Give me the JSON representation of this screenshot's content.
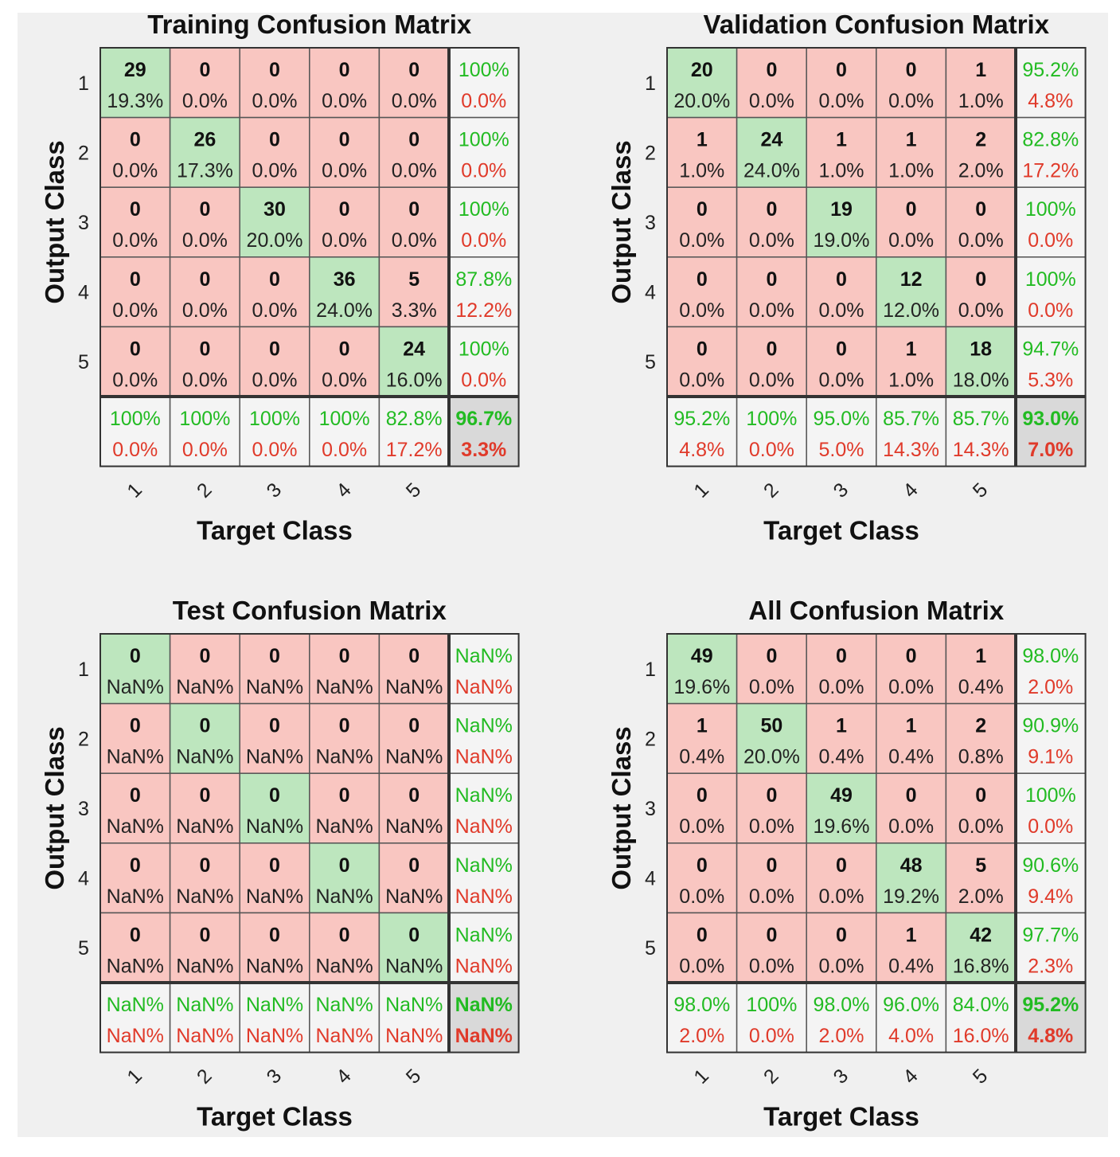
{
  "colors": {
    "correct_cell": "#bde6be",
    "wrong_cell": "#f9c6c1",
    "summary_cell": "#f4f4f4",
    "total_cell": "#d9d9d9",
    "green_text": "#22bb22",
    "red_text": "#e03a2a",
    "grid": "#555555"
  },
  "chart_data": [
    {
      "type": "heatmap",
      "title": "Training Confusion Matrix",
      "xlabel": "Target Class",
      "ylabel": "Output Class",
      "row_labels": [
        "1",
        "2",
        "3",
        "4",
        "5"
      ],
      "col_labels": [
        "1",
        "2",
        "3",
        "4",
        "5"
      ],
      "counts": [
        [
          29,
          0,
          0,
          0,
          0
        ],
        [
          0,
          26,
          0,
          0,
          0
        ],
        [
          0,
          0,
          30,
          0,
          0
        ],
        [
          0,
          0,
          0,
          36,
          5
        ],
        [
          0,
          0,
          0,
          0,
          24
        ]
      ],
      "percents": [
        [
          "19.3%",
          "0.0%",
          "0.0%",
          "0.0%",
          "0.0%"
        ],
        [
          "0.0%",
          "17.3%",
          "0.0%",
          "0.0%",
          "0.0%"
        ],
        [
          "0.0%",
          "0.0%",
          "20.0%",
          "0.0%",
          "0.0%"
        ],
        [
          "0.0%",
          "0.0%",
          "0.0%",
          "24.0%",
          "3.3%"
        ],
        [
          "0.0%",
          "0.0%",
          "0.0%",
          "0.0%",
          "16.0%"
        ]
      ],
      "row_summary": [
        [
          "100%",
          "0.0%"
        ],
        [
          "100%",
          "0.0%"
        ],
        [
          "100%",
          "0.0%"
        ],
        [
          "87.8%",
          "12.2%"
        ],
        [
          "100%",
          "0.0%"
        ]
      ],
      "col_summary": [
        [
          "100%",
          "0.0%"
        ],
        [
          "100%",
          "0.0%"
        ],
        [
          "100%",
          "0.0%"
        ],
        [
          "100%",
          "0.0%"
        ],
        [
          "82.8%",
          "17.2%"
        ]
      ],
      "total": [
        "96.7%",
        "3.3%"
      ]
    },
    {
      "type": "heatmap",
      "title": "Validation Confusion Matrix",
      "xlabel": "Target Class",
      "ylabel": "Output Class",
      "row_labels": [
        "1",
        "2",
        "3",
        "4",
        "5"
      ],
      "col_labels": [
        "1",
        "2",
        "3",
        "4",
        "5"
      ],
      "counts": [
        [
          20,
          0,
          0,
          0,
          1
        ],
        [
          1,
          24,
          1,
          1,
          2
        ],
        [
          0,
          0,
          19,
          0,
          0
        ],
        [
          0,
          0,
          0,
          12,
          0
        ],
        [
          0,
          0,
          0,
          1,
          18
        ]
      ],
      "percents": [
        [
          "20.0%",
          "0.0%",
          "0.0%",
          "0.0%",
          "1.0%"
        ],
        [
          "1.0%",
          "24.0%",
          "1.0%",
          "1.0%",
          "2.0%"
        ],
        [
          "0.0%",
          "0.0%",
          "19.0%",
          "0.0%",
          "0.0%"
        ],
        [
          "0.0%",
          "0.0%",
          "0.0%",
          "12.0%",
          "0.0%"
        ],
        [
          "0.0%",
          "0.0%",
          "0.0%",
          "1.0%",
          "18.0%"
        ]
      ],
      "row_summary": [
        [
          "95.2%",
          "4.8%"
        ],
        [
          "82.8%",
          "17.2%"
        ],
        [
          "100%",
          "0.0%"
        ],
        [
          "100%",
          "0.0%"
        ],
        [
          "94.7%",
          "5.3%"
        ]
      ],
      "col_summary": [
        [
          "95.2%",
          "4.8%"
        ],
        [
          "100%",
          "0.0%"
        ],
        [
          "95.0%",
          "5.0%"
        ],
        [
          "85.7%",
          "14.3%"
        ],
        [
          "85.7%",
          "14.3%"
        ]
      ],
      "total": [
        "93.0%",
        "7.0%"
      ]
    },
    {
      "type": "heatmap",
      "title": "Test Confusion Matrix",
      "xlabel": "Target Class",
      "ylabel": "Output Class",
      "row_labels": [
        "1",
        "2",
        "3",
        "4",
        "5"
      ],
      "col_labels": [
        "1",
        "2",
        "3",
        "4",
        "5"
      ],
      "counts": [
        [
          0,
          0,
          0,
          0,
          0
        ],
        [
          0,
          0,
          0,
          0,
          0
        ],
        [
          0,
          0,
          0,
          0,
          0
        ],
        [
          0,
          0,
          0,
          0,
          0
        ],
        [
          0,
          0,
          0,
          0,
          0
        ]
      ],
      "percents": [
        [
          "NaN%",
          "NaN%",
          "NaN%",
          "NaN%",
          "NaN%"
        ],
        [
          "NaN%",
          "NaN%",
          "NaN%",
          "NaN%",
          "NaN%"
        ],
        [
          "NaN%",
          "NaN%",
          "NaN%",
          "NaN%",
          "NaN%"
        ],
        [
          "NaN%",
          "NaN%",
          "NaN%",
          "NaN%",
          "NaN%"
        ],
        [
          "NaN%",
          "NaN%",
          "NaN%",
          "NaN%",
          "NaN%"
        ]
      ],
      "row_summary": [
        [
          "NaN%",
          "NaN%"
        ],
        [
          "NaN%",
          "NaN%"
        ],
        [
          "NaN%",
          "NaN%"
        ],
        [
          "NaN%",
          "NaN%"
        ],
        [
          "NaN%",
          "NaN%"
        ]
      ],
      "col_summary": [
        [
          "NaN%",
          "NaN%"
        ],
        [
          "NaN%",
          "NaN%"
        ],
        [
          "NaN%",
          "NaN%"
        ],
        [
          "NaN%",
          "NaN%"
        ],
        [
          "NaN%",
          "NaN%"
        ]
      ],
      "total": [
        "NaN%",
        "NaN%"
      ]
    },
    {
      "type": "heatmap",
      "title": "All Confusion Matrix",
      "xlabel": "Target Class",
      "ylabel": "Output Class",
      "row_labels": [
        "1",
        "2",
        "3",
        "4",
        "5"
      ],
      "col_labels": [
        "1",
        "2",
        "3",
        "4",
        "5"
      ],
      "counts": [
        [
          49,
          0,
          0,
          0,
          1
        ],
        [
          1,
          50,
          1,
          1,
          2
        ],
        [
          0,
          0,
          49,
          0,
          0
        ],
        [
          0,
          0,
          0,
          48,
          5
        ],
        [
          0,
          0,
          0,
          1,
          42
        ]
      ],
      "percents": [
        [
          "19.6%",
          "0.0%",
          "0.0%",
          "0.0%",
          "0.4%"
        ],
        [
          "0.4%",
          "20.0%",
          "0.4%",
          "0.4%",
          "0.8%"
        ],
        [
          "0.0%",
          "0.0%",
          "19.6%",
          "0.0%",
          "0.0%"
        ],
        [
          "0.0%",
          "0.0%",
          "0.0%",
          "19.2%",
          "2.0%"
        ],
        [
          "0.0%",
          "0.0%",
          "0.0%",
          "0.4%",
          "16.8%"
        ]
      ],
      "row_summary": [
        [
          "98.0%",
          "2.0%"
        ],
        [
          "90.9%",
          "9.1%"
        ],
        [
          "100%",
          "0.0%"
        ],
        [
          "90.6%",
          "9.4%"
        ],
        [
          "97.7%",
          "2.3%"
        ]
      ],
      "col_summary": [
        [
          "98.0%",
          "2.0%"
        ],
        [
          "100%",
          "0.0%"
        ],
        [
          "98.0%",
          "2.0%"
        ],
        [
          "96.0%",
          "4.0%"
        ],
        [
          "84.0%",
          "16.0%"
        ]
      ],
      "total": [
        "95.2%",
        "4.8%"
      ]
    }
  ]
}
